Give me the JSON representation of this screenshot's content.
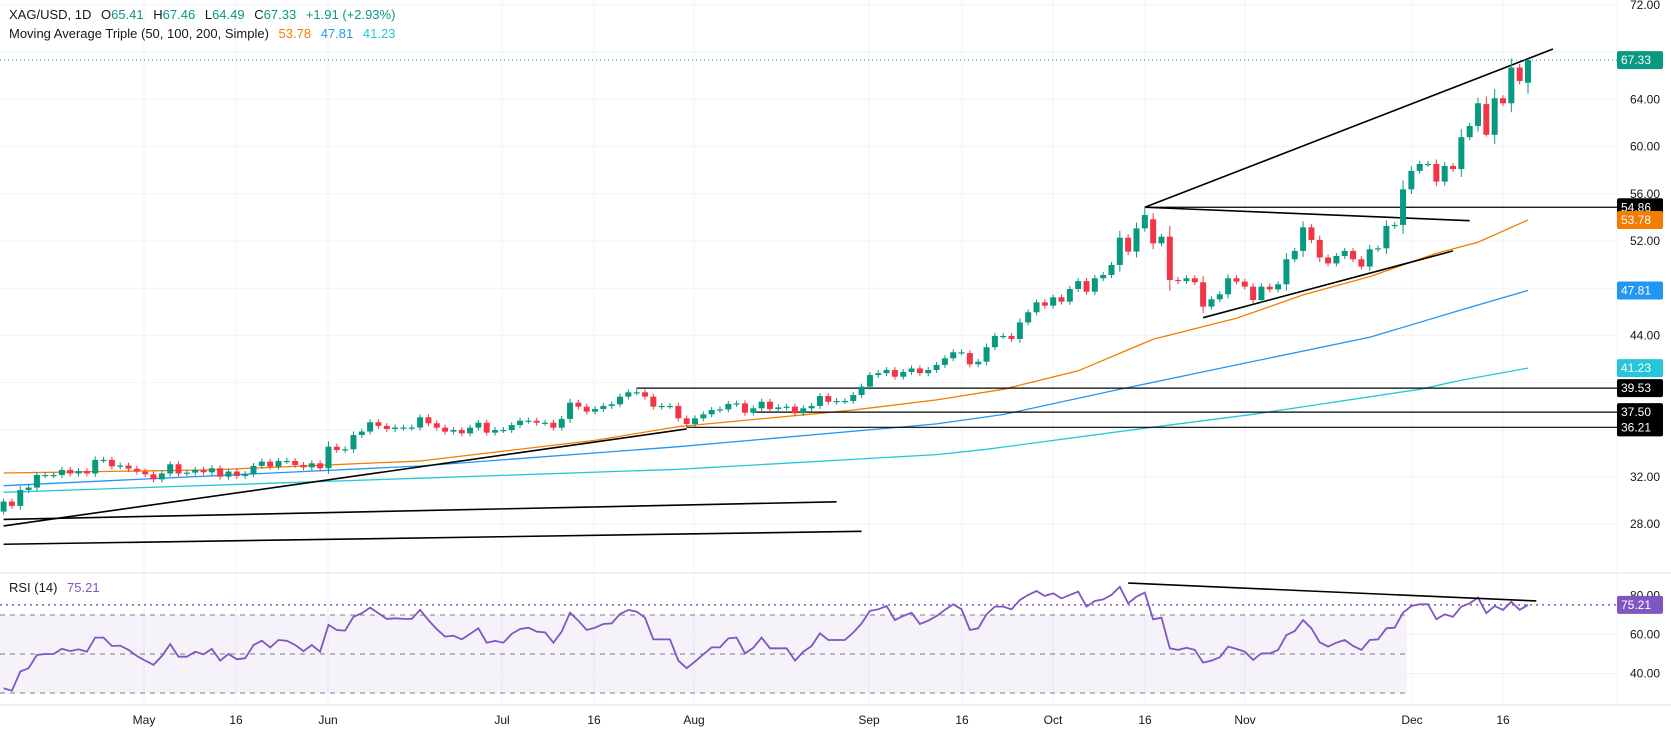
{
  "legend": {
    "symbol": "XAG/USD, 1D",
    "open_label": "O",
    "open": "65.41",
    "high_label": "H",
    "high": "67.46",
    "low_label": "L",
    "low": "64.49",
    "close_label": "C",
    "close": "67.33",
    "change": "+1.91 (+2.93%)",
    "ma_title": "Moving Average Triple (50, 100, 200, Simple)",
    "ma50": "53.78",
    "ma100": "47.81",
    "ma200": "41.23",
    "rsi_title": "RSI (14)",
    "rsi_value": "75.21"
  },
  "colors": {
    "up": "#089981",
    "down": "#f23645",
    "ma50": "#f57c00",
    "ma100": "#2196f3",
    "ma200": "#26c6da",
    "rsi": "#7e57c2",
    "trendline": "#000000",
    "grid": "#f0f3fa"
  },
  "price_axis": {
    "ticks": [
      "72.00",
      "64.00",
      "60.00",
      "56.00",
      "52.00",
      "44.00",
      "32.00",
      "28.00"
    ],
    "badges": [
      {
        "label": "67.33",
        "value": 67.33,
        "color": "#089981"
      },
      {
        "label": "54.86",
        "value": 54.86,
        "color": "#000000"
      },
      {
        "label": "53.78",
        "value": 53.78,
        "color": "#f57c00"
      },
      {
        "label": "47.81",
        "value": 47.81,
        "color": "#2196f3"
      },
      {
        "label": "41.23",
        "value": 41.23,
        "color": "#26c6da"
      },
      {
        "label": "39.53",
        "value": 39.53,
        "color": "#000000"
      },
      {
        "label": "37.50",
        "value": 37.5,
        "color": "#000000"
      },
      {
        "label": "36.21",
        "value": 36.21,
        "color": "#000000"
      }
    ]
  },
  "rsi_axis": {
    "ticks": [
      "80.00",
      "60.00",
      "40.00"
    ],
    "badge": {
      "label": "75.21",
      "value": 75.21,
      "color": "#7e57c2"
    }
  },
  "time_axis": {
    "labels": [
      "May",
      "16",
      "Jun",
      "Jul",
      "16",
      "Aug",
      "Sep",
      "16",
      "Oct",
      "16",
      "Nov",
      "Dec",
      "16"
    ]
  },
  "chart_data": {
    "type": "candlestick",
    "title": "XAG/USD, 1D",
    "ylim": [
      26,
      72
    ],
    "grid": true,
    "candles": {
      "close": [
        29.92,
        29.55,
        30.9,
        31.1,
        32.17,
        32.17,
        32.17,
        32.6,
        32.3,
        32.5,
        32.3,
        33.45,
        33.45,
        32.9,
        32.97,
        32.7,
        32.46,
        32.23,
        31.8,
        32.3,
        33.08,
        32.3,
        32.37,
        32.6,
        32.4,
        32.74,
        32.03,
        32.46,
        32.09,
        32.26,
        32.94,
        33.3,
        32.88,
        33.36,
        33.36,
        33.02,
        32.82,
        33.16,
        32.74,
        34.57,
        34.29,
        34.35,
        35.56,
        35.85,
        36.64,
        36.33,
        36.07,
        36.19,
        36.19,
        36.19,
        37.06,
        36.55,
        36.18,
        35.84,
        35.98,
        35.7,
        36.18,
        36.6,
        35.76,
        35.98,
        35.98,
        36.4,
        36.77,
        36.77,
        36.6,
        36.6,
        36.18,
        36.92,
        38.3,
        37.96,
        37.54,
        37.76,
        38.02,
        38.16,
        38.81,
        39.18,
        39.18,
        38.81,
        37.96,
        38.02,
        38.02,
        36.97,
        36.49,
        36.97,
        37.31,
        37.68,
        37.73,
        38.19,
        38.24,
        37.45,
        37.82,
        38.38,
        37.76,
        37.9,
        37.96,
        37.4,
        37.82,
        38.02,
        38.86,
        38.38,
        38.44,
        38.44,
        38.95,
        39.66,
        40.64,
        40.8,
        41.07,
        40.5,
        40.9,
        41.2,
        40.8,
        41.07,
        41.5,
        42.06,
        42.57,
        42.57,
        41.55,
        41.77,
        43.0,
        43.95,
        43.95,
        43.7,
        45.1,
        45.96,
        46.8,
        46.52,
        47.23,
        46.86,
        47.93,
        48.6,
        47.7,
        48.84,
        49.12,
        49.97,
        52.28,
        51.1,
        53.07,
        54.2,
        51.8,
        52.37,
        48.7,
        48.6,
        48.84,
        48.5,
        46.44,
        47.06,
        47.48,
        48.84,
        48.56,
        48.13,
        47.0,
        48.13,
        47.9,
        48.33,
        50.45,
        51.16,
        53.16,
        52.09,
        50.6,
        50.1,
        50.73,
        51.16,
        50.45,
        49.83,
        51.3,
        51.38,
        53.27,
        53.36,
        56.38,
        57.94,
        58.53,
        58.53,
        57.03,
        58.36,
        58.1,
        60.8,
        61.75,
        63.67,
        61.0,
        64.1,
        63.67,
        66.7,
        65.56,
        67.33
      ],
      "open_gaps": {
        "0": 29.07,
        "116": 42.5,
        "138": 53.84,
        "178": 63.6,
        "183": 65.41
      },
      "highs": {
        "76": 39.53,
        "137": 54.86,
        "182": 67.0,
        "183": 67.46
      },
      "lows": {
        "144": 45.9,
        "178": 60.85,
        "183": 64.49
      }
    },
    "moving_averages": [
      {
        "name": "50",
        "color": "#f57c00",
        "points": [
          [
            0,
            32.34
          ],
          [
            25,
            32.6
          ],
          [
            50,
            33.36
          ],
          [
            71,
            35.1
          ],
          [
            81,
            36.27
          ],
          [
            98,
            37.4
          ],
          [
            102,
            37.68
          ],
          [
            112,
            38.53
          ],
          [
            120,
            39.43
          ],
          [
            129,
            41.0
          ],
          [
            138,
            43.67
          ],
          [
            148,
            45.45
          ],
          [
            156,
            47.43
          ],
          [
            164,
            48.98
          ],
          [
            172,
            50.96
          ],
          [
            177,
            51.9
          ],
          [
            183,
            53.78
          ]
        ]
      },
      {
        "name": "100",
        "color": "#2196f3",
        "points": [
          [
            0,
            31.26
          ],
          [
            50,
            32.93
          ],
          [
            81,
            34.57
          ],
          [
            112,
            36.5
          ],
          [
            120,
            37.3
          ],
          [
            134,
            39.43
          ],
          [
            148,
            41.5
          ],
          [
            164,
            43.84
          ],
          [
            175,
            46.16
          ],
          [
            183,
            47.81
          ]
        ]
      },
      {
        "name": "200",
        "color": "#26c6da",
        "points": [
          [
            0,
            30.7
          ],
          [
            50,
            31.9
          ],
          [
            81,
            32.65
          ],
          [
            112,
            33.9
          ],
          [
            118,
            34.35
          ],
          [
            136,
            36.04
          ],
          [
            150,
            37.31
          ],
          [
            170,
            39.43
          ],
          [
            175,
            40.2
          ],
          [
            183,
            41.23
          ]
        ]
      }
    ],
    "trendlines": [
      {
        "from": [
          0,
          27.85
        ],
        "to": [
          82,
          36.07
        ]
      },
      {
        "from": [
          0,
          28.4
        ],
        "to": [
          100,
          29.9
        ]
      },
      {
        "from": [
          0,
          26.3
        ],
        "to": [
          103,
          27.4
        ]
      },
      {
        "from": [
          137,
          54.86
        ],
        "to": [
          186,
          68.27
        ]
      },
      {
        "from": [
          137,
          54.86
        ],
        "to": [
          176,
          53.72
        ]
      },
      {
        "from": [
          144,
          45.5
        ],
        "to": [
          174,
          51.16
        ]
      }
    ],
    "horizontal_levels": [
      {
        "value": 54.86,
        "from_index": 137
      },
      {
        "value": 39.53,
        "from_index": 76
      },
      {
        "value": 37.5,
        "from_index": 90
      },
      {
        "value": 36.21,
        "from_index": 82
      }
    ],
    "last_price": 67.33,
    "rsi": {
      "period": 14,
      "ylim": [
        20,
        90
      ],
      "levels": [
        70,
        50,
        30
      ],
      "values": [
        32.4,
        31.2,
        41.0,
        42.7,
        49.5,
        50.0,
        50.0,
        52.7,
        51.5,
        52.4,
        51.2,
        58.4,
        58.4,
        54.1,
        54.3,
        52.1,
        49.0,
        46.6,
        44.4,
        49.0,
        55.1,
        48.6,
        48.6,
        51.2,
        49.8,
        52.6,
        46.6,
        50.0,
        47.3,
        47.8,
        54.6,
        56.8,
        53.4,
        57.2,
        56.8,
        54.6,
        51.5,
        54.6,
        51.2,
        64.9,
        62.3,
        62.0,
        69.1,
        70.9,
        73.8,
        70.9,
        68.0,
        68.3,
        68.0,
        68.0,
        72.6,
        67.4,
        62.7,
        58.9,
        59.4,
        57.5,
        60.3,
        63.2,
        55.8,
        56.7,
        55.8,
        60.3,
        62.8,
        63.5,
        61.5,
        61.1,
        55.8,
        61.5,
        71.2,
        67.1,
        62.3,
        63.5,
        65.4,
        65.7,
        70.5,
        72.6,
        71.7,
        68.6,
        57.5,
        57.5,
        57.5,
        46.6,
        42.7,
        46.1,
        49.8,
        53.4,
        53.4,
        58.0,
        58.4,
        50.3,
        53.2,
        58.4,
        52.9,
        52.9,
        52.9,
        46.6,
        51.2,
        54.1,
        60.6,
        57.2,
        57.2,
        57.2,
        61.0,
        65.7,
        72.1,
        72.9,
        74.6,
        67.4,
        69.5,
        71.2,
        65.4,
        67.1,
        69.5,
        72.6,
        75.5,
        72.9,
        62.3,
        63.2,
        70.3,
        74.3,
        74.3,
        72.9,
        77.7,
        80.3,
        82.3,
        79.8,
        81.1,
        78.5,
        80.3,
        82.0,
        74.3,
        77.2,
        78.0,
        80.3,
        84.5,
        76.0,
        79.4,
        81.5,
        67.8,
        68.6,
        52.9,
        52.1,
        53.2,
        52.1,
        45.6,
        46.6,
        48.3,
        53.8,
        52.6,
        51.2,
        47.0,
        50.3,
        50.3,
        52.1,
        59.7,
        61.8,
        67.4,
        63.2,
        56.0,
        53.8,
        55.8,
        57.2,
        54.1,
        52.1,
        57.2,
        57.5,
        63.2,
        63.5,
        71.2,
        74.6,
        75.5,
        75.5,
        67.8,
        70.3,
        69.1,
        74.3,
        76.0,
        78.9,
        70.9,
        74.6,
        72.6,
        76.8,
        72.6,
        75.21
      ],
      "trendline": {
        "from": [
          135,
          86.4
        ],
        "to": [
          184,
          77.2
        ]
      }
    }
  }
}
